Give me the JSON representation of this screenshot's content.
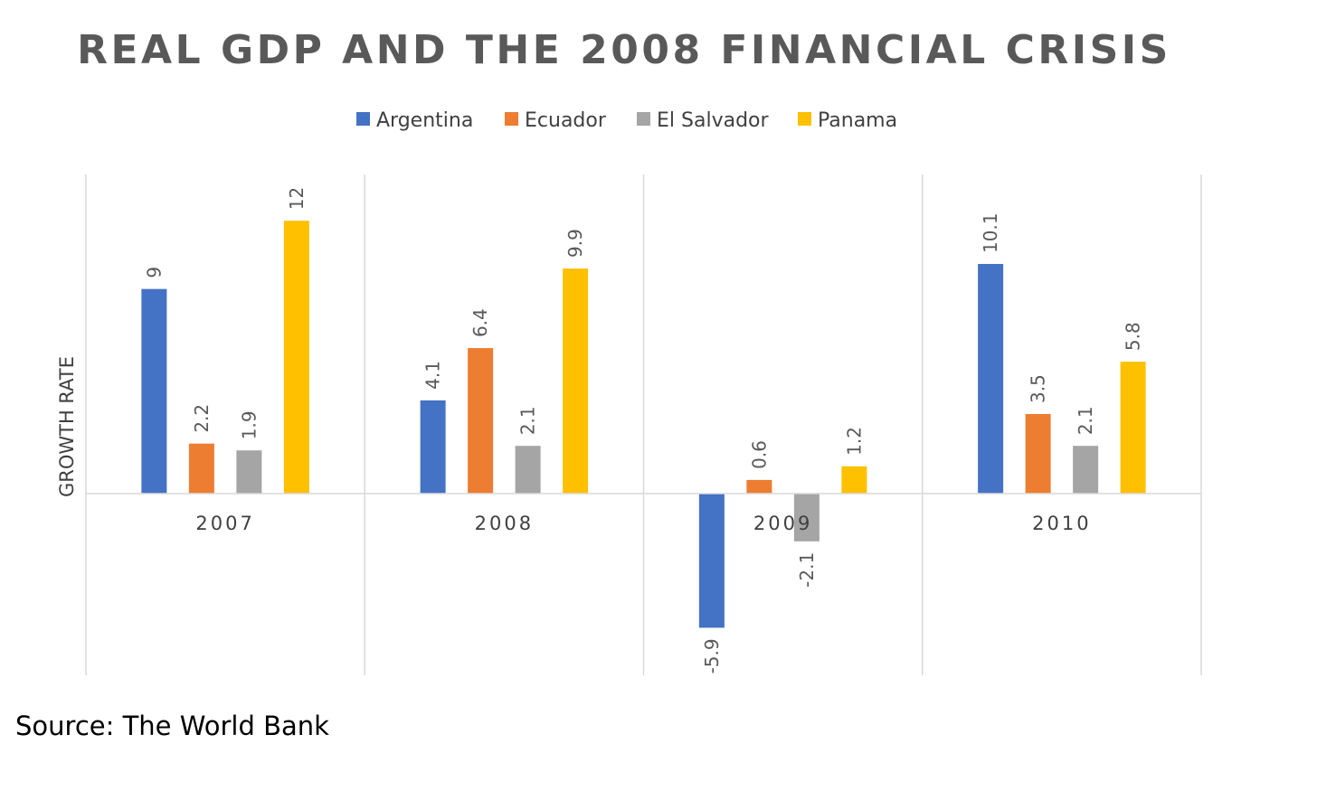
{
  "chart_data": {
    "type": "bar",
    "title": "REAL GDP AND THE 2008 FINANCIAL CRISIS",
    "ylabel": "GROWTH RATE",
    "xlabel": "",
    "categories": [
      "2007",
      "2008",
      "2009",
      "2010"
    ],
    "series": [
      {
        "name": "Argentina",
        "color": "#4472C4",
        "values": [
          9,
          4.1,
          -5.9,
          10.1
        ]
      },
      {
        "name": "Ecuador",
        "color": "#ED7D31",
        "values": [
          2.2,
          6.4,
          0.6,
          3.5
        ]
      },
      {
        "name": "El Salvador",
        "color": "#A5A5A5",
        "values": [
          1.9,
          2.1,
          -2.1,
          2.1
        ]
      },
      {
        "name": "Panama",
        "color": "#FFC000",
        "values": [
          12,
          9.9,
          1.2,
          5.8
        ]
      }
    ],
    "ylim": [
      -8,
      14
    ],
    "legend_position": "top",
    "grid": false,
    "data_labels": true
  },
  "source": "Source: The World Bank"
}
